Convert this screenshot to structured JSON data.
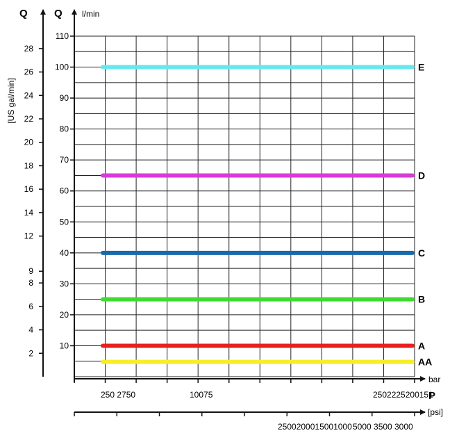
{
  "chart_data": {
    "type": "line",
    "title": "",
    "y_left": {
      "quantity": "Q",
      "unit": "[US gal/min]",
      "ticks": [
        "2",
        "4",
        "6",
        "8",
        "9",
        "12",
        "14",
        "16",
        "18",
        "20",
        "22",
        "24",
        "26",
        "28"
      ],
      "tick_values_lpm": [
        7.57,
        15.14,
        22.71,
        30.28,
        34.07,
        45.42,
        53.0,
        60.57,
        68.14,
        75.71,
        83.28,
        90.85,
        98.42,
        106.0
      ]
    },
    "y_main": {
      "quantity": "Q",
      "unit": "l/min",
      "ticks": [
        "10",
        "20",
        "30",
        "40",
        "50",
        "60",
        "70",
        "80",
        "90",
        "100",
        "110"
      ],
      "ylim": [
        0,
        110
      ]
    },
    "x_bar": {
      "unit": "bar",
      "quantity": "P",
      "tick_text": [
        "250 2750",
        "10075",
        "2502225200151"
      ]
    },
    "x_psi": {
      "unit": "[psi]",
      "tick_text": [
        "2500200015001000",
        "5000 3500",
        "3000"
      ]
    },
    "series": [
      {
        "name": "E",
        "color": "#66e8ef",
        "value": 100
      },
      {
        "name": "D",
        "color": "#d93ad9",
        "value": 65
      },
      {
        "name": "C",
        "color": "#1a6aaa",
        "value": 40
      },
      {
        "name": "B",
        "color": "#3ddc2e",
        "value": 25
      },
      {
        "name": "A",
        "color": "#e8201c",
        "value": 10
      },
      {
        "name": "AA",
        "color": "#f6ee2a",
        "value": 4.8
      }
    ],
    "grid": true
  }
}
